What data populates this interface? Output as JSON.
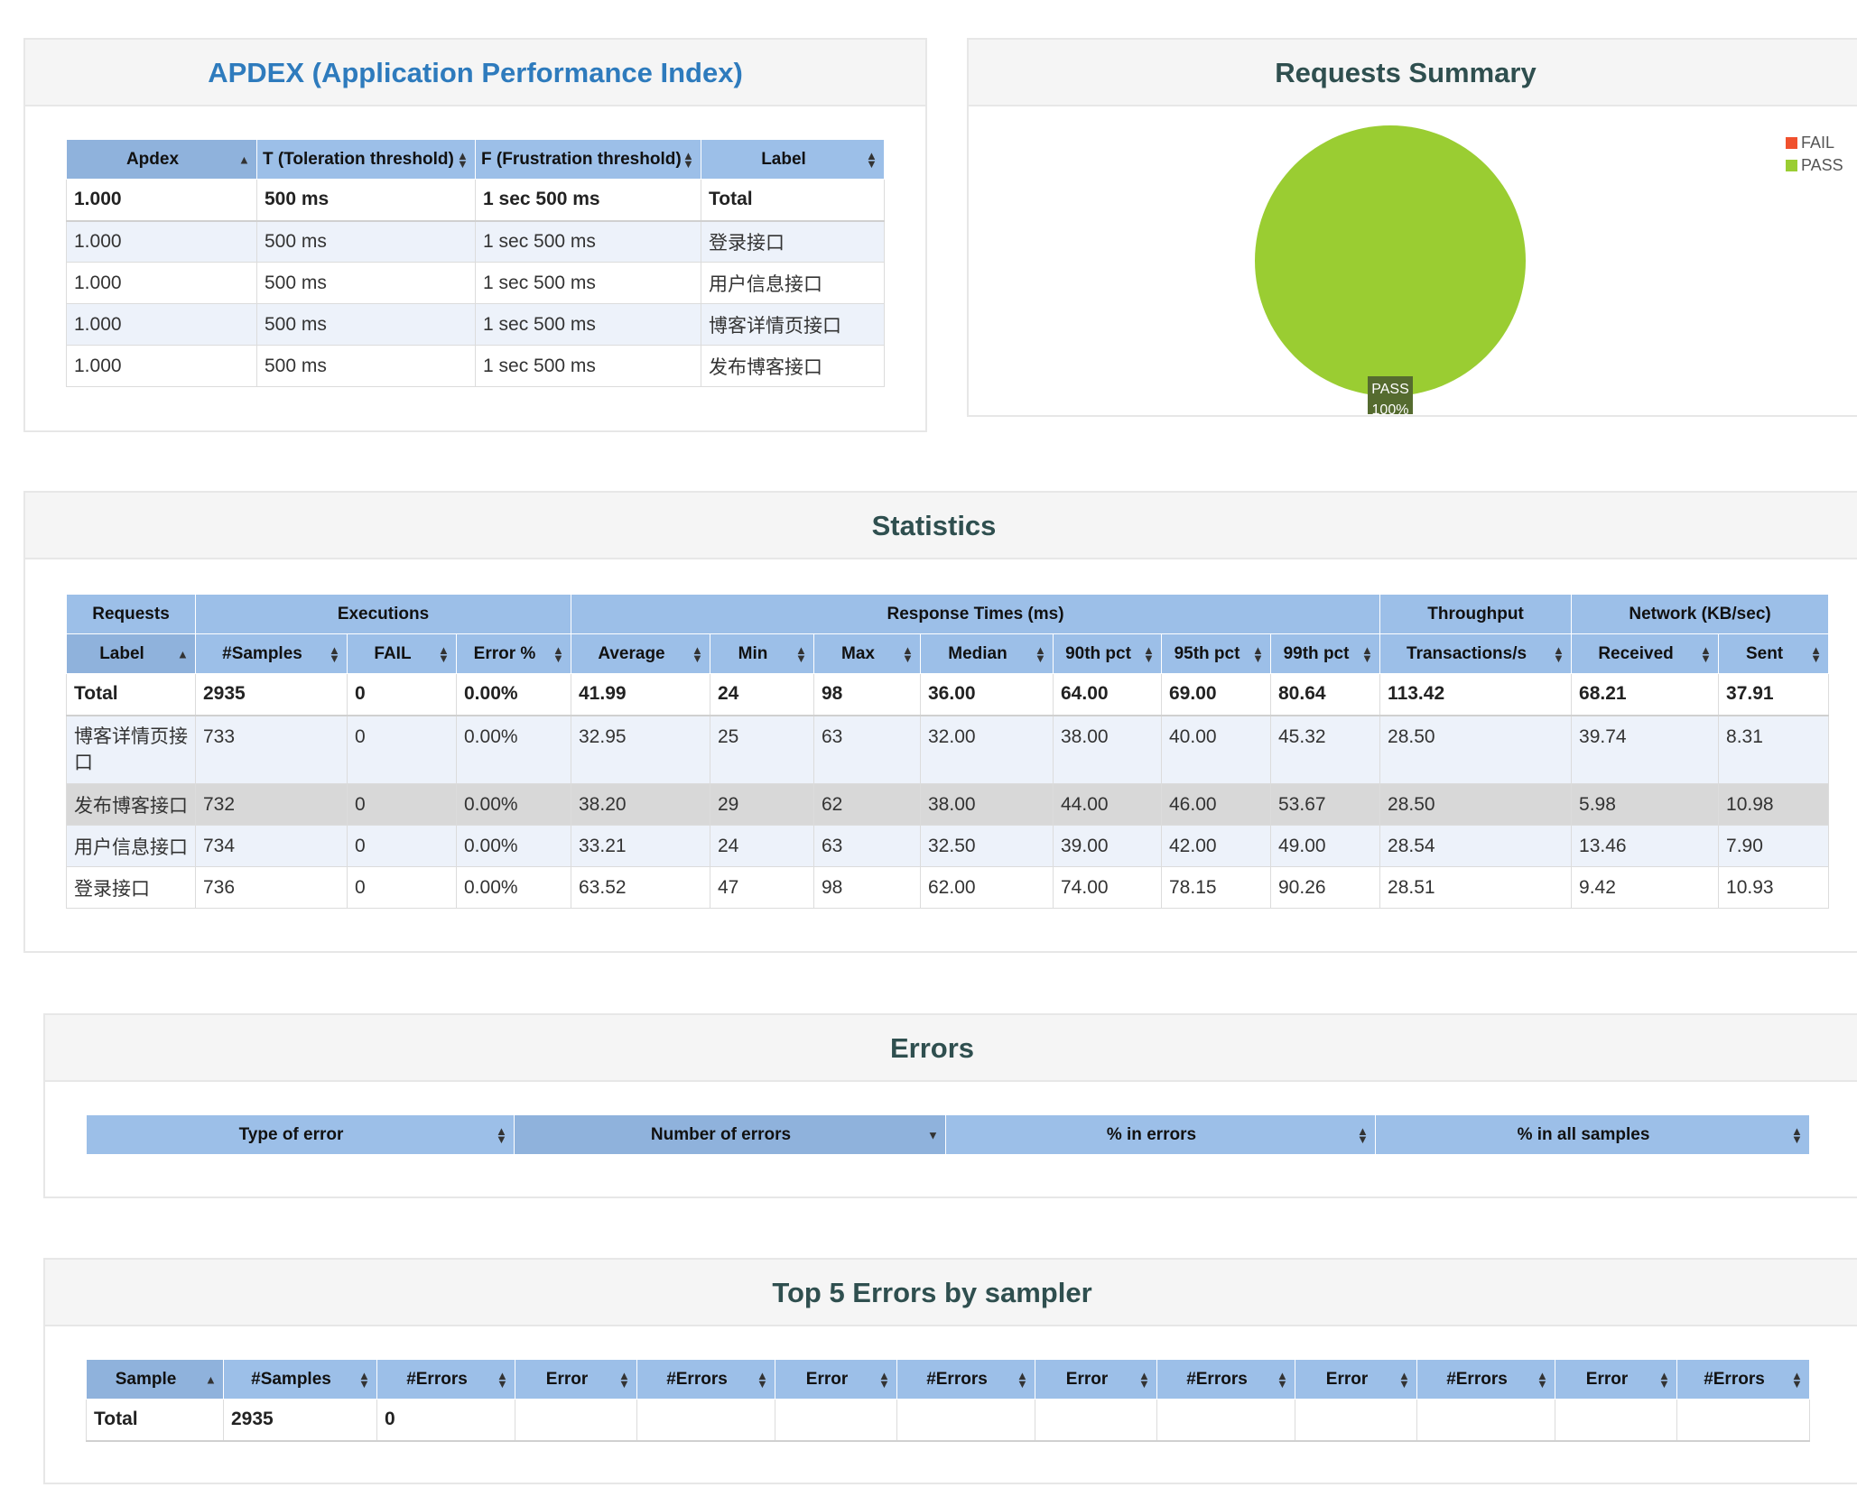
{
  "apdex": {
    "title": "APDEX (Application Performance Index)",
    "columns": [
      "Apdex",
      "T (Toleration threshold)",
      "F (Frustration threshold)",
      "Label"
    ],
    "rows": [
      [
        "1.000",
        "500 ms",
        "1 sec 500 ms",
        "Total"
      ],
      [
        "1.000",
        "500 ms",
        "1 sec 500 ms",
        "登录接口"
      ],
      [
        "1.000",
        "500 ms",
        "1 sec 500 ms",
        "用户信息接口"
      ],
      [
        "1.000",
        "500 ms",
        "1 sec 500 ms",
        "博客详情页接口"
      ],
      [
        "1.000",
        "500 ms",
        "1 sec 500 ms",
        "发布博客接口"
      ]
    ]
  },
  "summary": {
    "title": "Requests Summary",
    "legend": [
      {
        "label": "FAIL",
        "color": "#f0512e"
      },
      {
        "label": "PASS",
        "color": "#9acd32"
      }
    ],
    "slice_label": "PASS",
    "slice_percent": "100%",
    "pass_fraction": 1.0
  },
  "statistics": {
    "title": "Statistics",
    "groups": [
      "Requests",
      "Executions",
      "Response Times (ms)",
      "Throughput",
      "Network (KB/sec)"
    ],
    "columns": [
      "Label",
      "#Samples",
      "FAIL",
      "Error %",
      "Average",
      "Min",
      "Max",
      "Median",
      "90th pct",
      "95th pct",
      "99th pct",
      "Transactions/s",
      "Received",
      "Sent"
    ],
    "rows": [
      [
        "Total",
        "2935",
        "0",
        "0.00%",
        "41.99",
        "24",
        "98",
        "36.00",
        "64.00",
        "69.00",
        "80.64",
        "113.42",
        "68.21",
        "37.91"
      ],
      [
        "博客详情页接口",
        "733",
        "0",
        "0.00%",
        "32.95",
        "25",
        "63",
        "32.00",
        "38.00",
        "40.00",
        "45.32",
        "28.50",
        "39.74",
        "8.31"
      ],
      [
        "发布博客接口",
        "732",
        "0",
        "0.00%",
        "38.20",
        "29",
        "62",
        "38.00",
        "44.00",
        "46.00",
        "53.67",
        "28.50",
        "5.98",
        "10.98"
      ],
      [
        "用户信息接口",
        "734",
        "0",
        "0.00%",
        "33.21",
        "24",
        "63",
        "32.50",
        "39.00",
        "42.00",
        "49.00",
        "28.54",
        "13.46",
        "7.90"
      ],
      [
        "登录接口",
        "736",
        "0",
        "0.00%",
        "63.52",
        "47",
        "98",
        "62.00",
        "74.00",
        "78.15",
        "90.26",
        "28.51",
        "9.42",
        "10.93"
      ]
    ]
  },
  "errors": {
    "title": "Errors",
    "columns": [
      "Type of error",
      "Number of errors",
      "% in errors",
      "% in all samples"
    ]
  },
  "top5": {
    "title": "Top 5 Errors by sampler",
    "columns": [
      "Sample",
      "#Samples",
      "#Errors",
      "Error",
      "#Errors",
      "Error",
      "#Errors",
      "Error",
      "#Errors",
      "Error",
      "#Errors",
      "Error",
      "#Errors"
    ],
    "rows": [
      [
        "Total",
        "2935",
        "0",
        "",
        "",
        "",
        "",
        "",
        "",
        "",
        "",
        "",
        ""
      ]
    ]
  }
}
